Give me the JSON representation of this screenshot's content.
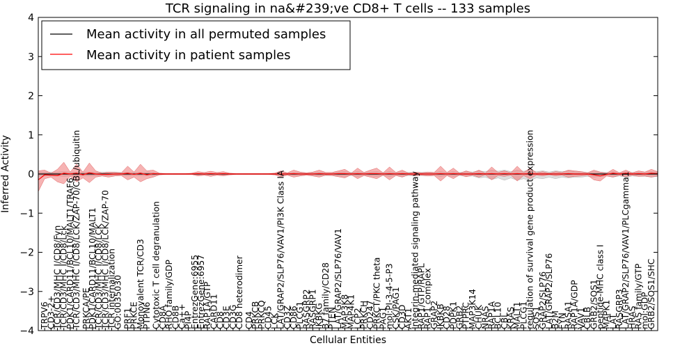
{
  "chart_data": {
    "type": "line",
    "title": "TCR signaling in na&#239;ve CD8+ T cells -- 133 samples",
    "xlabel": "Cellular Entities",
    "ylabel": "Inferred Activity",
    "ylim": [
      -4,
      4
    ],
    "yticks": [
      "−4",
      "−3",
      "−2",
      "−1",
      "0",
      "1",
      "2",
      "3",
      "4"
    ],
    "grid": false,
    "legend": {
      "position": "top-left",
      "entries": [
        {
          "label": "Mean activity in all permuted samples",
          "color": "#000000"
        },
        {
          "label": "Mean activity in patient samples",
          "color": "#ff0000"
        }
      ]
    },
    "series_colors": {
      "permuted": "#000000",
      "patient": "#ff0000",
      "patient_band": "#f08080",
      "permuted_band": "#c8c8c8"
    },
    "categories": [
      "TRPV6",
      "CD3-2+",
      "TCR/CD3/MHC I/CD8/Fyn",
      "TCR/CD3/MHC I/CD8/Lck",
      "PDK1/CARD11/BCL10/MALT1/TRAF6",
      "TCR/CD3/MHC I/CD8/LCK/ZAP-70/CBL/ubiquitin",
      "PRKCA/PE",
      "PDK1/CARD11/BCL10/MALT1",
      "TCR/CD3/MHC I/CD8/LCK",
      "TCR/CD3/MHC I/CD8/LCK/ZAP-70",
      "TCR internalization",
      "GO:0035030",
      "PRF1",
      "PRKCE",
      "Monovalent TCR/CD3",
      "PTPN6",
      "Cytotoxic T cell degranulation",
      "CD8A",
      "RHO family/GDP",
      "CD8B",
      "Ca++",
      "PI4P",
      "EntrezGene:6955",
      "EntrezGene:6957",
      "RAP1A/GTP",
      "CARD11",
      "CD8",
      "CD3E",
      "CD3G",
      "CD8 heterodimer",
      "CD4",
      "PRKCB",
      "PRKCQ",
      "CD45",
      "LCK",
      "LAT/GRAP2/SLP76/VAV1/PI3K Class IA",
      "CD3Z",
      "CD86",
      "PLCG1",
      "RASGRP2",
      "RASGRP1",
      "IKBKG",
      "B7 family/CD28",
      "PTEN",
      "LAT/GRAP2/SLP76/VAV1",
      "MAP3K8",
      "MAP4K1",
      "LCP2",
      "PRKCH",
      "CD247",
      "PRKCT/PKC theta",
      "PAG1",
      "mol:PI-3-4-5-P3",
      "CSK/PAG1",
      "CD3D",
      "AKT1",
      "Integrin-mediated signaling pathway",
      "RAP1/GTP/RAPL",
      "RAP1 complex",
      "GRAP2",
      "IKBKB",
      "CD28",
      "PDPK1",
      "GRB2",
      "PTPRC",
      "MAP3K14",
      "CHUK",
      "NRAS",
      "RAP1A",
      "BCL10",
      "CBL",
      "KRAS",
      "MALT1",
      "PLCG1",
      "regulation of survival gene product expression",
      "SOS1",
      "GRAP2/SLP76",
      "LAT/GRAP2/SLP76",
      "B2M",
      "FYN",
      "RASA1",
      "RAP1A/GDP",
      "VAV1",
      "CBLB",
      "GRB2/SOS1",
      "peptide-MHC class I",
      "MAPK1",
      "LAT",
      "RASGRP3",
      "LAT/GRAP2/SLP76/VAV1/PLCgamma1",
      "HRAS",
      "RAS family/GTP",
      "mol:GDP",
      "GRB2/SOS1/SHC"
    ],
    "visible_labels": [
      {
        "pos": 1,
        "text": "TRPV6"
      },
      {
        "pos": 2,
        "text": "CD3-2+"
      },
      {
        "pos": 3,
        "text": "TCR/CD3/MHC I/CD8/Fyn"
      },
      {
        "pos": 4,
        "text": "TCR/CD3/MHC I/CD8/Lck"
      },
      {
        "pos": 5,
        "text": "PDK1/CARD11/BCL10/MALT1/TRAF6"
      },
      {
        "pos": 6,
        "text": "TCR/CD3/MHC I/CD8/LCK/ZAP-70/CBL/ubiquitin"
      },
      {
        "pos": 7.5,
        "text": "PRKCA/PE"
      },
      {
        "pos": 8.5,
        "text": "PDK1/CARD11/BCL10/MALT1"
      },
      {
        "pos": 9.5,
        "text": "TCR/CD3/MHC I/CD8/LCK"
      },
      {
        "pos": 10.5,
        "text": "TCR/CD3/MHC I/CD8/LCK/ZAP-70"
      },
      {
        "pos": 11.5,
        "text": "TCR internalization"
      },
      {
        "pos": 12.5,
        "text": "GO:0035030"
      },
      {
        "pos": 14,
        "text": "PRF1"
      },
      {
        "pos": 15,
        "text": "PRKCE"
      },
      {
        "pos": 16,
        "text": "Monovalent TCR/CD3"
      },
      {
        "pos": 17,
        "text": "PTPN6"
      },
      {
        "pos": 18.5,
        "text": "Cytotoxic T cell degranulation"
      },
      {
        "pos": 19.5,
        "text": "CD8A"
      },
      {
        "pos": 20.5,
        "text": "RHO family/GDP"
      },
      {
        "pos": 21.5,
        "text": "CD8B"
      },
      {
        "pos": 22.5,
        "text": "Ca++"
      },
      {
        "pos": 23.5,
        "text": "PI4P"
      },
      {
        "pos": 24.5,
        "text": "EntrezGene:6955"
      },
      {
        "pos": 25.5,
        "text": "EntrezGene:6957"
      },
      {
        "pos": 26.5,
        "text": "RAP1A/GTP"
      },
      {
        "pos": 27.5,
        "text": "CARD11"
      },
      {
        "pos": 28.5,
        "text": "CD8"
      },
      {
        "pos": 29.5,
        "text": "CD3E"
      },
      {
        "pos": 30.5,
        "text": "CD3G"
      },
      {
        "pos": 31.5,
        "text": "CD8 heterodimer"
      },
      {
        "pos": 33,
        "text": "CD4"
      },
      {
        "pos": 34,
        "text": "PRKCB"
      },
      {
        "pos": 35,
        "text": "PRKCQ"
      },
      {
        "pos": 36,
        "text": "CD45"
      },
      {
        "pos": 37,
        "text": "LCK"
      },
      {
        "pos": 38,
        "text": "LAT/GRAP2/SLP76/VAV1/PI3K Class IA"
      },
      {
        "pos": 39,
        "text": "CD3Z"
      },
      {
        "pos": 40,
        "text": "CD86"
      },
      {
        "pos": 41,
        "text": "PLCG1"
      },
      {
        "pos": 42,
        "text": "RASGRP2"
      },
      {
        "pos": 43,
        "text": "RASGRP1"
      },
      {
        "pos": 44,
        "text": "IKBKG"
      },
      {
        "pos": 45,
        "text": "B7 family/CD28"
      },
      {
        "pos": 46,
        "text": "PTEN"
      },
      {
        "pos": 47,
        "text": "LAT/GRAP2/SLP76/VAV1"
      },
      {
        "pos": 48,
        "text": "MAP3K8"
      },
      {
        "pos": 49,
        "text": "MAP4K1"
      },
      {
        "pos": 50,
        "text": "LCP2"
      },
      {
        "pos": 51,
        "text": "PRKCH"
      },
      {
        "pos": 52,
        "text": "CD247"
      },
      {
        "pos": 53,
        "text": "PRKCT/PKC theta"
      },
      {
        "pos": 54,
        "text": "PAG1"
      },
      {
        "pos": 55,
        "text": "mol:PI-3-4-5-P3"
      },
      {
        "pos": 56,
        "text": "CSK/PAG1"
      },
      {
        "pos": 57,
        "text": "CD3D"
      },
      {
        "pos": 58,
        "text": "AKT1"
      },
      {
        "pos": 59,
        "text": "Integrin-mediated signaling pathway"
      },
      {
        "pos": 60,
        "text": "RAP1/GTP/RAPL"
      },
      {
        "pos": 61,
        "text": "RAP1 complex"
      },
      {
        "pos": 62,
        "text": "GRAP2"
      },
      {
        "pos": 63,
        "text": "IKBKB"
      },
      {
        "pos": 64,
        "text": "CD28"
      },
      {
        "pos": 65,
        "text": "PDPK1"
      },
      {
        "pos": 66,
        "text": "GRB2"
      },
      {
        "pos": 67,
        "text": "PTPRC"
      },
      {
        "pos": 68,
        "text": "MAP3K14"
      },
      {
        "pos": 69,
        "text": "CHUK"
      },
      {
        "pos": 70,
        "text": "NRAS"
      },
      {
        "pos": 71,
        "text": "RAP1A"
      },
      {
        "pos": 72,
        "text": "BCL10"
      },
      {
        "pos": 73,
        "text": "CBL"
      },
      {
        "pos": 74,
        "text": "KRAS"
      },
      {
        "pos": 75,
        "text": "MALT1"
      },
      {
        "pos": 76,
        "text": "PLCG1"
      },
      {
        "pos": 77,
        "text": "regulation of survival gene product expression"
      },
      {
        "pos": 78,
        "text": "SOS1"
      },
      {
        "pos": 79,
        "text": "GRAP2/SLP76"
      },
      {
        "pos": 80,
        "text": "LAT/GRAP2/SLP76"
      },
      {
        "pos": 81,
        "text": "B2M"
      },
      {
        "pos": 82,
        "text": "FYN"
      },
      {
        "pos": 83,
        "text": "RASA1"
      },
      {
        "pos": 84,
        "text": "RAP1A/GDP"
      },
      {
        "pos": 85,
        "text": "VAV1"
      },
      {
        "pos": 86,
        "text": "CBLB"
      },
      {
        "pos": 87,
        "text": "GRB2/SOS1"
      },
      {
        "pos": 88,
        "text": "peptide-MHC class I"
      },
      {
        "pos": 89,
        "text": "MAPK1"
      },
      {
        "pos": 90,
        "text": "LAT"
      },
      {
        "pos": 91,
        "text": "RASGRP3"
      },
      {
        "pos": 92,
        "text": "LAT/GRAP2/SLP76/VAV1/PLCgamma1"
      },
      {
        "pos": 93,
        "text": "HRAS"
      },
      {
        "pos": 94,
        "text": "RAS family/GTP"
      },
      {
        "pos": 95,
        "text": "mol:GDP"
      },
      {
        "pos": 96,
        "text": "GRB2/SOS1/SHC"
      }
    ],
    "x_range": [
      0,
      97
    ],
    "band_x": [
      0,
      1,
      2,
      3,
      4,
      5,
      6,
      7,
      8,
      9,
      10,
      11,
      12,
      13,
      14,
      15,
      16,
      17,
      18,
      19,
      20,
      21,
      22,
      23,
      24,
      25,
      26,
      27,
      28,
      29,
      30,
      31,
      32,
      33,
      34,
      35,
      36,
      37,
      38,
      39,
      40,
      41,
      42,
      43,
      44,
      45,
      46,
      47,
      48,
      49,
      50,
      51,
      52,
      53,
      54,
      55,
      56,
      57,
      58,
      59,
      60,
      61,
      62,
      63,
      64,
      65,
      66,
      67,
      68,
      69,
      70,
      71,
      72,
      73,
      74,
      75,
      76,
      77,
      78,
      79,
      80,
      81,
      82,
      83,
      84,
      85,
      86,
      87,
      88,
      89,
      90,
      91,
      92,
      93,
      94,
      95,
      96,
      97
    ],
    "patient_upper": [
      0.08,
      0.1,
      0.02,
      0.12,
      0.3,
      0.05,
      0.25,
      0.05,
      0.28,
      0.08,
      0.02,
      0.05,
      0.04,
      0.03,
      0.2,
      0.05,
      0.25,
      0.08,
      0.1,
      0.02,
      0.01,
      0.01,
      0.01,
      0.01,
      0.02,
      0.06,
      0.04,
      0.07,
      0.04,
      0.06,
      0.02,
      0.01,
      0.01,
      0.01,
      0.01,
      0.01,
      0.01,
      0.02,
      0.08,
      0.03,
      0.1,
      0.05,
      0.03,
      0.05,
      0.1,
      0.04,
      0.04,
      0.08,
      0.12,
      0.02,
      0.15,
      0.04,
      0.1,
      0.15,
      0.03,
      0.18,
      0.04,
      0.1,
      0.02,
      0.05,
      0.03,
      0.05,
      0.04,
      0.2,
      0.04,
      0.15,
      0.02,
      0.08,
      0.03,
      0.1,
      0.02,
      0.18,
      0.04,
      0.08,
      0.03,
      0.2,
      0.04,
      0.15,
      0.03,
      0.06,
      0.02,
      0.06,
      0.04,
      0.1,
      0.08,
      0.06,
      0.03,
      0.1,
      0.05,
      0.02,
      0.12,
      0.03,
      0.1,
      0.03,
      0.08,
      0.05,
      0.12,
      0.06
    ],
    "patient_lower": [
      -0.45,
      -0.12,
      -0.08,
      -0.2,
      -0.25,
      -0.06,
      -0.2,
      -0.1,
      -0.22,
      -0.08,
      -0.05,
      -0.08,
      -0.05,
      -0.04,
      -0.15,
      -0.08,
      -0.2,
      -0.12,
      -0.08,
      -0.02,
      -0.01,
      -0.01,
      -0.01,
      -0.01,
      -0.01,
      -0.05,
      -0.03,
      -0.06,
      -0.03,
      -0.05,
      -0.02,
      -0.01,
      -0.01,
      -0.01,
      -0.01,
      -0.01,
      -0.01,
      -0.02,
      -0.07,
      -0.03,
      -0.08,
      -0.05,
      -0.03,
      -0.05,
      -0.08,
      -0.03,
      -0.04,
      -0.07,
      -0.1,
      -0.02,
      -0.12,
      -0.04,
      -0.08,
      -0.12,
      -0.03,
      -0.15,
      -0.04,
      -0.08,
      -0.02,
      -0.04,
      -0.03,
      -0.05,
      -0.04,
      -0.18,
      -0.04,
      -0.12,
      -0.02,
      -0.07,
      -0.03,
      -0.08,
      -0.02,
      -0.15,
      -0.04,
      -0.06,
      -0.03,
      -0.18,
      -0.04,
      -0.12,
      -0.03,
      -0.05,
      -0.02,
      -0.05,
      -0.03,
      -0.08,
      -0.06,
      -0.05,
      -0.03,
      -0.15,
      -0.18,
      -0.05,
      -0.08,
      -0.03,
      -0.07,
      -0.03,
      -0.06,
      -0.05,
      -0.08,
      -0.05
    ],
    "permuted_upper": [
      0.05,
      0.05,
      0.05,
      0.05,
      0.06,
      0.05,
      0.05,
      0.05,
      0.05,
      0.05,
      0.05,
      0.05,
      0.05,
      0.04,
      0.04,
      0.04,
      0.04,
      0.04,
      0.04,
      0.02,
      0.01,
      0.01,
      0.01,
      0.01,
      0.01,
      0.02,
      0.02,
      0.02,
      0.02,
      0.02,
      0.02,
      0.01,
      0.01,
      0.01,
      0.01,
      0.01,
      0.01,
      0.02,
      0.04,
      0.03,
      0.04,
      0.04,
      0.03,
      0.04,
      0.05,
      0.04,
      0.04,
      0.05,
      0.06,
      0.04,
      0.06,
      0.04,
      0.05,
      0.06,
      0.04,
      0.06,
      0.04,
      0.06,
      0.04,
      0.05,
      0.04,
      0.05,
      0.04,
      0.06,
      0.04,
      0.06,
      0.04,
      0.06,
      0.05,
      0.08,
      0.06,
      0.1,
      0.07,
      0.1,
      0.06,
      0.1,
      0.07,
      0.1,
      0.06,
      0.08,
      0.05,
      0.08,
      0.06,
      0.08,
      0.06,
      0.06,
      0.04,
      0.06,
      0.05,
      0.04,
      0.06,
      0.04,
      0.06,
      0.04,
      0.05,
      0.05,
      0.06,
      0.05
    ],
    "permuted_lower": [
      -0.05,
      -0.05,
      -0.05,
      -0.05,
      -0.06,
      -0.05,
      -0.05,
      -0.05,
      -0.05,
      -0.05,
      -0.05,
      -0.05,
      -0.05,
      -0.04,
      -0.04,
      -0.04,
      -0.04,
      -0.04,
      -0.04,
      -0.02,
      -0.01,
      -0.01,
      -0.01,
      -0.01,
      -0.01,
      -0.02,
      -0.02,
      -0.02,
      -0.02,
      -0.02,
      -0.02,
      -0.01,
      -0.01,
      -0.01,
      -0.01,
      -0.01,
      -0.01,
      -0.02,
      -0.04,
      -0.03,
      -0.04,
      -0.04,
      -0.03,
      -0.04,
      -0.05,
      -0.04,
      -0.04,
      -0.05,
      -0.06,
      -0.04,
      -0.06,
      -0.04,
      -0.05,
      -0.06,
      -0.04,
      -0.06,
      -0.04,
      -0.06,
      -0.04,
      -0.05,
      -0.04,
      -0.05,
      -0.04,
      -0.06,
      -0.04,
      -0.06,
      -0.04,
      -0.06,
      -0.05,
      -0.1,
      -0.08,
      -0.14,
      -0.1,
      -0.16,
      -0.1,
      -0.16,
      -0.12,
      -0.16,
      -0.1,
      -0.12,
      -0.08,
      -0.12,
      -0.08,
      -0.1,
      -0.08,
      -0.08,
      -0.06,
      -0.08,
      -0.06,
      -0.05,
      -0.08,
      -0.05,
      -0.08,
      -0.05,
      -0.06,
      -0.06,
      -0.08,
      -0.06
    ],
    "permuted_mean": [
      0.0,
      0.0,
      0.0,
      0.0,
      0.0,
      0.0,
      0.0,
      0.0,
      0.0,
      0.0,
      0.0,
      0.0,
      0.0,
      0.0,
      0.0,
      0.0,
      0.0,
      0.0,
      0.0,
      0.0,
      0.0,
      0.0,
      0.0,
      0.0,
      0.0,
      0.0,
      0.0,
      0.0,
      0.0,
      0.0,
      0.0,
      0.0,
      0.0,
      0.0,
      0.0,
      0.0,
      0.0,
      0.0,
      0.0,
      0.0,
      0.0,
      0.0,
      0.0,
      0.0,
      0.0,
      0.0,
      0.0,
      0.0,
      0.0,
      0.0,
      0.0,
      0.0,
      0.0,
      0.0,
      0.0,
      0.0,
      0.0,
      0.0,
      0.0,
      0.0,
      0.0,
      0.0,
      0.0,
      0.0,
      0.0,
      0.0,
      0.0,
      0.0,
      0.0,
      0.0,
      0.0,
      0.0,
      0.0,
      0.0,
      0.0,
      0.0,
      0.0,
      0.0,
      0.0,
      0.0,
      0.0,
      0.0,
      0.0,
      0.0,
      0.0,
      0.0,
      0.0,
      0.0,
      0.0,
      0.0,
      0.0,
      0.0,
      0.0,
      0.0,
      0.0,
      0.0,
      0.0,
      0.0
    ],
    "patient_mean": [
      -0.15,
      -0.02,
      -0.03,
      -0.04,
      0.02,
      0.0,
      0.02,
      -0.02,
      0.03,
      0.0,
      -0.01,
      -0.01,
      0.0,
      0.0,
      0.02,
      -0.01,
      0.02,
      -0.02,
      0.01,
      0.0,
      0.0,
      0.0,
      0.0,
      0.0,
      0.0,
      0.01,
      0.0,
      0.01,
      0.0,
      0.01,
      0.0,
      0.0,
      0.0,
      0.0,
      0.0,
      0.0,
      0.0,
      0.0,
      0.0,
      0.0,
      0.01,
      0.0,
      0.0,
      0.0,
      0.01,
      0.0,
      0.0,
      0.01,
      0.01,
      0.0,
      0.01,
      0.0,
      0.01,
      0.01,
      0.0,
      0.01,
      0.0,
      0.01,
      0.0,
      0.0,
      0.0,
      0.0,
      0.0,
      0.01,
      0.0,
      0.01,
      0.0,
      0.0,
      0.0,
      0.01,
      0.0,
      0.01,
      0.0,
      0.01,
      0.0,
      0.01,
      0.0,
      0.01,
      0.0,
      0.0,
      0.0,
      0.0,
      0.0,
      0.01,
      0.0,
      0.0,
      0.0,
      -0.02,
      -0.05,
      -0.01,
      0.02,
      0.0,
      0.02,
      0.0,
      0.01,
      0.0,
      0.02,
      0.01
    ]
  }
}
